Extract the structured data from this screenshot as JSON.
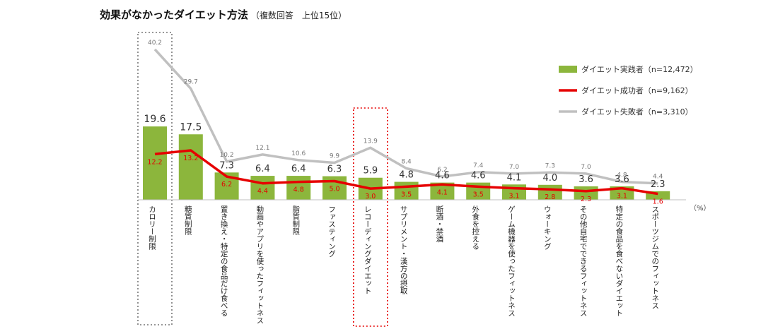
{
  "chart_data": {
    "type": "bar",
    "title": "効果がなかったダイエット方法",
    "subtitle": "（複数回答　上位15位）",
    "unit_label": "（%）",
    "categories": [
      "カロリー制限",
      "糖質制限",
      "置き換え・特定の食品だけ食べる",
      "動画やアプリを使ったフィットネス",
      "脂質制限",
      "ファスティング",
      "レコーディングダイエット",
      "サプリメント・漢方の摂取",
      "断酒・禁酒",
      "外食を控える",
      "ゲーム機器を使ったフィットネス",
      "ウォーキング",
      "その他自宅でできるフィットネス",
      "特定の食品を食べないダイエット",
      "スポーツジムでのフィットネス"
    ],
    "series": [
      {
        "name": "ダイエット実践者（n=12,472）",
        "type": "bar",
        "color": "#8cb63c",
        "values": [
          19.6,
          17.5,
          7.3,
          6.4,
          6.4,
          6.3,
          5.9,
          4.8,
          4.6,
          4.6,
          4.1,
          4.0,
          3.6,
          3.6,
          2.3
        ]
      },
      {
        "name": "ダイエット成功者（n=9,162）",
        "type": "line",
        "color": "#e60000",
        "values": [
          12.2,
          13.2,
          6.2,
          4.4,
          4.8,
          5.0,
          3.0,
          3.5,
          4.1,
          3.5,
          3.1,
          2.8,
          2.3,
          3.1,
          1.6
        ]
      },
      {
        "name": "ダイエット失敗者（n=3,310）",
        "type": "line",
        "color": "#c0c0c0",
        "values": [
          40.2,
          29.7,
          10.2,
          12.1,
          10.6,
          9.9,
          13.9,
          8.4,
          6.2,
          7.4,
          7.0,
          7.3,
          7.0,
          4.8,
          4.4
        ]
      }
    ],
    "highlighted_categories": [
      "カロリー制限",
      "レコーディングダイエット"
    ],
    "legend_position": "top-right",
    "grid": false
  }
}
